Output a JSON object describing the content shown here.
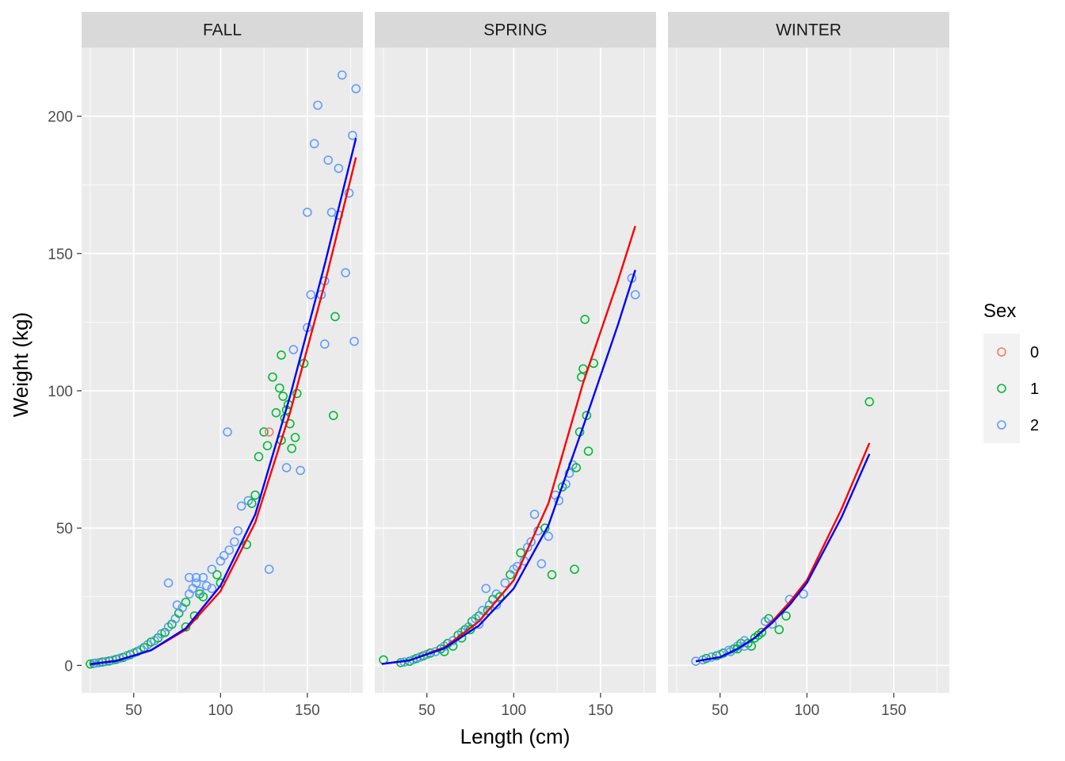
{
  "chart_data": {
    "type": "scatter",
    "xlabel": "Length (cm)",
    "ylabel": "Weight (kg)",
    "xlim": [
      20,
      182
    ],
    "ylim": [
      -10,
      225
    ],
    "x_ticks": [
      50,
      100,
      150
    ],
    "y_ticks": [
      0,
      50,
      100,
      150,
      200
    ],
    "grid": true,
    "facets": [
      "FALL",
      "SPRING",
      "WINTER"
    ],
    "legend": {
      "title": "Sex",
      "position": "right",
      "entries": [
        {
          "label": "0",
          "color": "#F8766D"
        },
        {
          "label": "1",
          "color": "#00BA38"
        },
        {
          "label": "2",
          "color": "#619CFF"
        }
      ]
    },
    "fit_lines": {
      "FALL": {
        "red": [
          [
            25,
            0.5
          ],
          [
            40,
            1.7
          ],
          [
            60,
            5.5
          ],
          [
            80,
            13
          ],
          [
            100,
            27
          ],
          [
            120,
            52
          ],
          [
            140,
            92
          ],
          [
            160,
            139
          ],
          [
            178,
            185
          ]
        ],
        "blue": [
          [
            25,
            0.4
          ],
          [
            40,
            1.6
          ],
          [
            60,
            5.5
          ],
          [
            80,
            13.5
          ],
          [
            100,
            29
          ],
          [
            120,
            55
          ],
          [
            140,
            98
          ],
          [
            160,
            146
          ],
          [
            178,
            192
          ]
        ]
      },
      "SPRING": {
        "red": [
          [
            24,
            0.5
          ],
          [
            40,
            1.8
          ],
          [
            60,
            6.5
          ],
          [
            80,
            16
          ],
          [
            100,
            31
          ],
          [
            120,
            59
          ],
          [
            140,
            103
          ],
          [
            160,
            140
          ],
          [
            170,
            160
          ]
        ],
        "blue": [
          [
            24,
            0.5
          ],
          [
            40,
            1.8
          ],
          [
            60,
            6.2
          ],
          [
            80,
            14.5
          ],
          [
            100,
            28
          ],
          [
            120,
            51
          ],
          [
            140,
            87
          ],
          [
            160,
            124
          ],
          [
            170,
            144
          ]
        ]
      },
      "WINTER": {
        "red": [
          [
            36,
            1.5
          ],
          [
            50,
            3
          ],
          [
            60,
            6
          ],
          [
            70,
            10
          ],
          [
            80,
            16
          ],
          [
            90,
            23
          ],
          [
            100,
            31
          ],
          [
            120,
            57
          ],
          [
            136,
            81
          ]
        ],
        "blue": [
          [
            36,
            1.5
          ],
          [
            50,
            3
          ],
          [
            60,
            6
          ],
          [
            70,
            10
          ],
          [
            80,
            15.5
          ],
          [
            90,
            22
          ],
          [
            100,
            30
          ],
          [
            120,
            54
          ],
          [
            136,
            77
          ]
        ]
      }
    },
    "points": {
      "FALL": [
        [
          25,
          0.5,
          1
        ],
        [
          27,
          0.7,
          1
        ],
        [
          28,
          0.8,
          2
        ],
        [
          30,
          1,
          2
        ],
        [
          32,
          1.2,
          1
        ],
        [
          34,
          1.4,
          2
        ],
        [
          36,
          1.6,
          1
        ],
        [
          38,
          1.9,
          2
        ],
        [
          40,
          2.2,
          1
        ],
        [
          42,
          2.6,
          2
        ],
        [
          44,
          2.9,
          1
        ],
        [
          46,
          3.5,
          2
        ],
        [
          48,
          3.9,
          1
        ],
        [
          50,
          4.5,
          2
        ],
        [
          52,
          5,
          1
        ],
        [
          54,
          5.7,
          2
        ],
        [
          56,
          6.5,
          1
        ],
        [
          58,
          7.5,
          2
        ],
        [
          60,
          8.5,
          1
        ],
        [
          62,
          9,
          2
        ],
        [
          64,
          10,
          1
        ],
        [
          66,
          11.5,
          2
        ],
        [
          68,
          12,
          1
        ],
        [
          70,
          14,
          2
        ],
        [
          72,
          15,
          1
        ],
        [
          74,
          17,
          2
        ],
        [
          76,
          19,
          1
        ],
        [
          78,
          21,
          2
        ],
        [
          80,
          23,
          1
        ],
        [
          82,
          26,
          2
        ],
        [
          84,
          28,
          2
        ],
        [
          86,
          30,
          2
        ],
        [
          88,
          26,
          1
        ],
        [
          90,
          32,
          2
        ],
        [
          92,
          29,
          2
        ],
        [
          95,
          35,
          2
        ],
        [
          98,
          33,
          1
        ],
        [
          100,
          38,
          2
        ],
        [
          102,
          40,
          2
        ],
        [
          104,
          85,
          2
        ],
        [
          105,
          42,
          2
        ],
        [
          108,
          45,
          2
        ],
        [
          110,
          49,
          2
        ],
        [
          112,
          58,
          2
        ],
        [
          115,
          44,
          1
        ],
        [
          116,
          60,
          2
        ],
        [
          118,
          59,
          1
        ],
        [
          120,
          62,
          1
        ],
        [
          122,
          76,
          1
        ],
        [
          125,
          85,
          1
        ],
        [
          127,
          80,
          1
        ],
        [
          128,
          85,
          0
        ],
        [
          128,
          35,
          2
        ],
        [
          130,
          105,
          1
        ],
        [
          132,
          92,
          1
        ],
        [
          134,
          101,
          1
        ],
        [
          135,
          113,
          1
        ],
        [
          136,
          98,
          1
        ],
        [
          138,
          72,
          2
        ],
        [
          138,
          93,
          1
        ],
        [
          140,
          88,
          1
        ],
        [
          142,
          115,
          2
        ],
        [
          144,
          99,
          1
        ],
        [
          146,
          71,
          2
        ],
        [
          148,
          110,
          1
        ],
        [
          150,
          123,
          2
        ],
        [
          152,
          135,
          2
        ],
        [
          154,
          190,
          2
        ],
        [
          156,
          204,
          2
        ],
        [
          158,
          135,
          2
        ],
        [
          160,
          117,
          2
        ],
        [
          162,
          184,
          2
        ],
        [
          164,
          165,
          2
        ],
        [
          165,
          91,
          1
        ],
        [
          166,
          127,
          1
        ],
        [
          168,
          181,
          2
        ],
        [
          170,
          215,
          2
        ],
        [
          172,
          143,
          2
        ],
        [
          174,
          172,
          2
        ],
        [
          176,
          193,
          2
        ],
        [
          177,
          118,
          2
        ],
        [
          178,
          210,
          2
        ],
        [
          168,
          164,
          2
        ],
        [
          150,
          165,
          2
        ],
        [
          160,
          140,
          2
        ],
        [
          80,
          14,
          1
        ],
        [
          85,
          18,
          1
        ],
        [
          90,
          25,
          1
        ],
        [
          95,
          28,
          2
        ],
        [
          100,
          30,
          1
        ],
        [
          70,
          30,
          2
        ],
        [
          75,
          22,
          2
        ],
        [
          82,
          32,
          2
        ],
        [
          86,
          32,
          2
        ],
        [
          88,
          27,
          2
        ],
        [
          135,
          82,
          1
        ],
        [
          137,
          90,
          1
        ],
        [
          139,
          95,
          1
        ],
        [
          141,
          79,
          1
        ],
        [
          143,
          83,
          1
        ]
      ],
      "SPRING": [
        [
          25,
          2,
          1
        ],
        [
          35,
          1,
          1
        ],
        [
          37,
          1.2,
          2
        ],
        [
          40,
          1.5,
          1
        ],
        [
          42,
          2,
          2
        ],
        [
          44,
          2.5,
          1
        ],
        [
          46,
          3,
          2
        ],
        [
          48,
          3.5,
          1
        ],
        [
          50,
          4,
          2
        ],
        [
          52,
          4.5,
          1
        ],
        [
          55,
          5,
          2
        ],
        [
          58,
          6,
          1
        ],
        [
          60,
          7,
          2
        ],
        [
          62,
          8,
          1
        ],
        [
          65,
          9,
          2
        ],
        [
          68,
          11,
          1
        ],
        [
          70,
          12,
          2
        ],
        [
          72,
          13,
          1
        ],
        [
          74,
          14,
          2
        ],
        [
          76,
          16,
          1
        ],
        [
          78,
          17,
          2
        ],
        [
          80,
          18,
          1
        ],
        [
          82,
          20,
          2
        ],
        [
          84,
          28,
          2
        ],
        [
          86,
          22,
          2
        ],
        [
          88,
          24,
          1
        ],
        [
          90,
          26,
          2
        ],
        [
          92,
          25,
          1
        ],
        [
          95,
          30,
          2
        ],
        [
          98,
          33,
          1
        ],
        [
          100,
          35,
          2
        ],
        [
          102,
          36,
          2
        ],
        [
          104,
          41,
          1
        ],
        [
          106,
          38,
          2
        ],
        [
          108,
          43,
          2
        ],
        [
          110,
          45,
          2
        ],
        [
          112,
          55,
          2
        ],
        [
          114,
          49,
          2
        ],
        [
          116,
          37,
          2
        ],
        [
          118,
          50,
          1
        ],
        [
          120,
          47,
          2
        ],
        [
          122,
          33,
          1
        ],
        [
          124,
          62,
          2
        ],
        [
          126,
          60,
          2
        ],
        [
          128,
          65,
          1
        ],
        [
          130,
          66,
          2
        ],
        [
          132,
          70,
          2
        ],
        [
          134,
          73,
          2
        ],
        [
          135,
          35,
          1
        ],
        [
          136,
          72,
          1
        ],
        [
          138,
          85,
          1
        ],
        [
          139,
          105,
          1
        ],
        [
          140,
          108,
          1
        ],
        [
          141,
          126,
          1
        ],
        [
          142,
          91,
          1
        ],
        [
          143,
          78,
          1
        ],
        [
          146,
          110,
          1
        ],
        [
          168,
          141,
          2
        ],
        [
          170,
          135,
          2
        ],
        [
          60,
          5,
          1
        ],
        [
          65,
          7,
          1
        ],
        [
          70,
          10,
          1
        ],
        [
          75,
          13,
          1
        ],
        [
          80,
          15,
          2
        ],
        [
          85,
          20,
          1
        ],
        [
          90,
          22,
          2
        ]
      ],
      "WINTER": [
        [
          36,
          1.5,
          2
        ],
        [
          40,
          2,
          2
        ],
        [
          42,
          2.5,
          1
        ],
        [
          45,
          3,
          2
        ],
        [
          48,
          3.5,
          1
        ],
        [
          50,
          4,
          2
        ],
        [
          52,
          4.5,
          1
        ],
        [
          55,
          5.5,
          2
        ],
        [
          58,
          6,
          1
        ],
        [
          60,
          7,
          2
        ],
        [
          62,
          8,
          1
        ],
        [
          64,
          9,
          2
        ],
        [
          66,
          8,
          1
        ],
        [
          68,
          7,
          1
        ],
        [
          70,
          10,
          1
        ],
        [
          72,
          11,
          1
        ],
        [
          74,
          12,
          1
        ],
        [
          76,
          16,
          2
        ],
        [
          78,
          17,
          1
        ],
        [
          80,
          15,
          2
        ],
        [
          84,
          13,
          1
        ],
        [
          88,
          18,
          1
        ],
        [
          90,
          24,
          2
        ],
        [
          98,
          26,
          2
        ],
        [
          136,
          96,
          1
        ],
        [
          56,
          5,
          2
        ],
        [
          60,
          6,
          1
        ],
        [
          64,
          7,
          2
        ]
      ]
    }
  },
  "colors": {
    "panel_bg": "#EBEBEB",
    "strip_bg": "#D9D9D9",
    "grid": "#FFFFFF",
    "fit_red": "#FF0000",
    "fit_blue": "#0000FF"
  }
}
